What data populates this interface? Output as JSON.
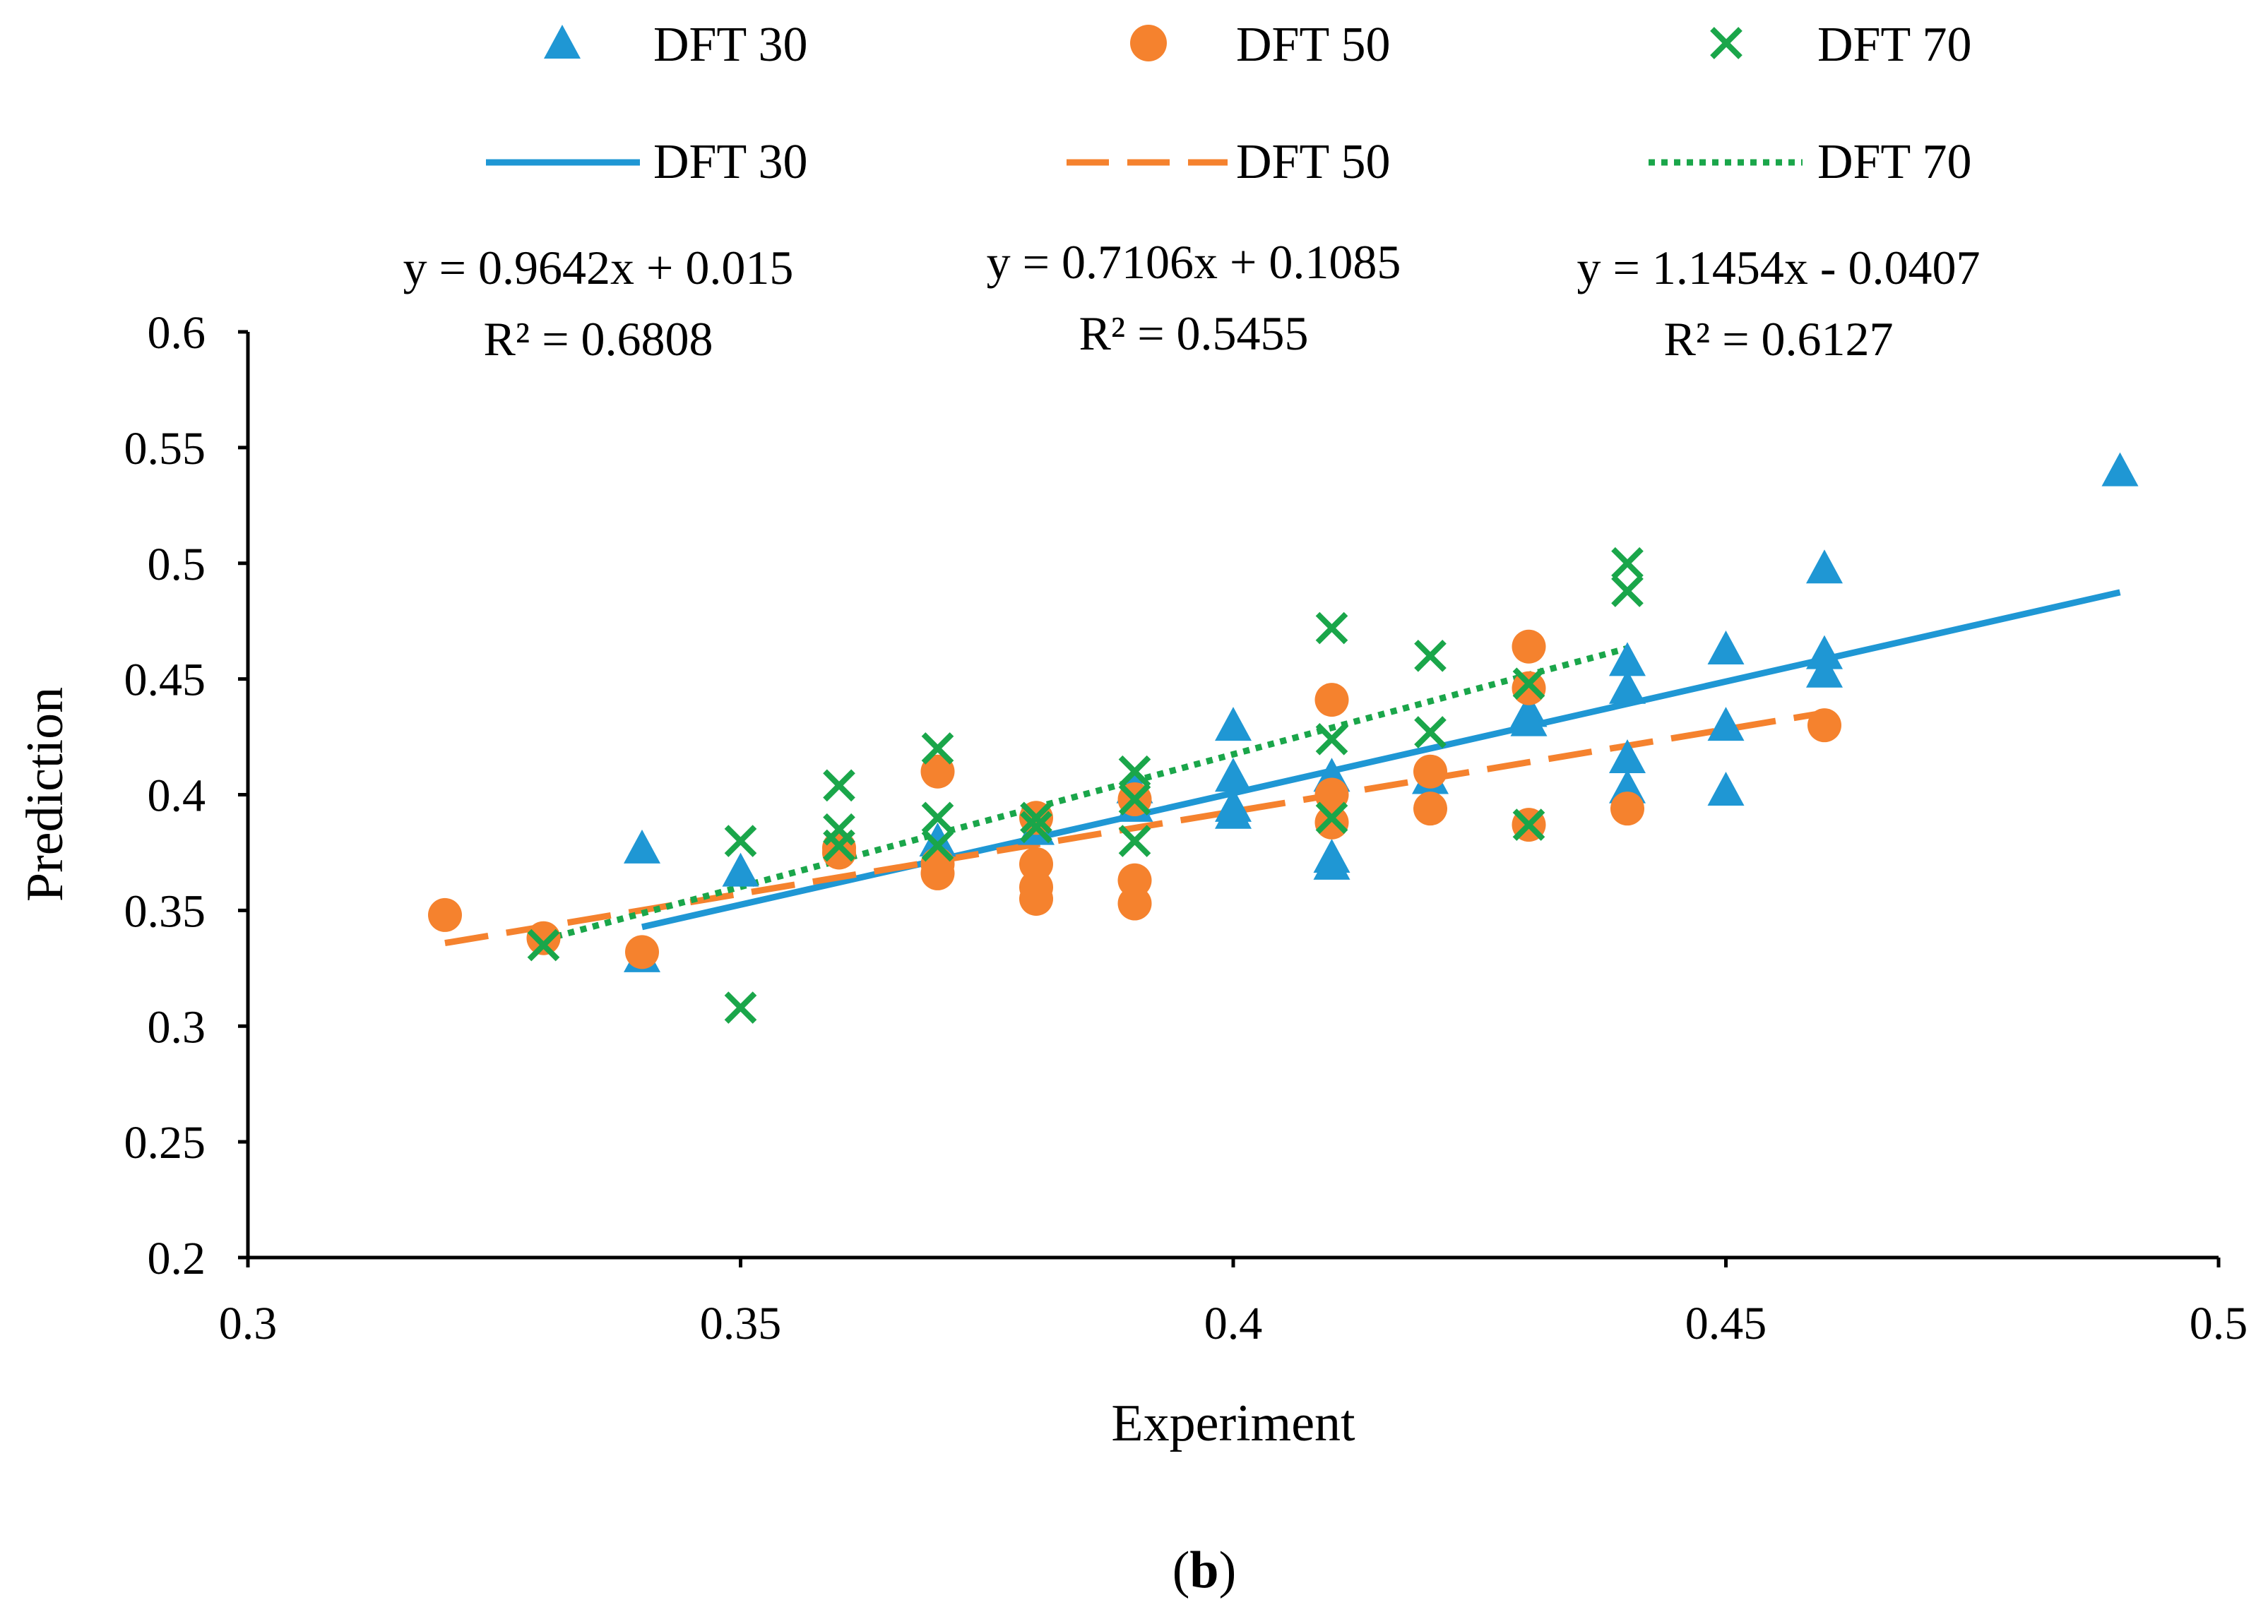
{
  "chart_data": {
    "type": "scatter",
    "caption": {
      "prefix": "(",
      "letter": "b",
      "suffix": ")"
    },
    "xlabel": "Experiment",
    "ylabel": "Prediction",
    "xlim": [
      0.3,
      0.5
    ],
    "ylim": [
      0.2,
      0.6
    ],
    "xticks": [
      {
        "value": 0.3,
        "label": "0.3"
      },
      {
        "value": 0.35,
        "label": "0.35"
      },
      {
        "value": 0.4,
        "label": "0.4"
      },
      {
        "value": 0.45,
        "label": "0.45"
      },
      {
        "value": 0.5,
        "label": "0.5"
      }
    ],
    "yticks": [
      {
        "value": 0.2,
        "label": "0.2"
      },
      {
        "value": 0.25,
        "label": "0.25"
      },
      {
        "value": 0.3,
        "label": "0.3"
      },
      {
        "value": 0.35,
        "label": "0.35"
      },
      {
        "value": 0.4,
        "label": "0.4"
      },
      {
        "value": 0.45,
        "label": "0.45"
      },
      {
        "value": 0.5,
        "label": "0.5"
      },
      {
        "value": 0.55,
        "label": "0.55"
      },
      {
        "value": 0.6,
        "label": "0.6"
      }
    ],
    "grid": false,
    "legend_position": "top",
    "series": [
      {
        "name": "DFT 30",
        "marker": "triangle",
        "color": "#1f97d4",
        "line_style": "solid",
        "trendline": {
          "slope": 0.9642,
          "intercept": 0.015,
          "x_range": [
            0.34,
            0.49
          ],
          "equation": "y = 0.9642x + 0.015",
          "r2": "R² = 0.6808"
        },
        "points": [
          [
            0.34,
            0.377
          ],
          [
            0.34,
            0.33
          ],
          [
            0.35,
            0.367
          ],
          [
            0.37,
            0.38
          ],
          [
            0.38,
            0.385
          ],
          [
            0.39,
            0.395
          ],
          [
            0.39,
            0.403
          ],
          [
            0.4,
            0.43
          ],
          [
            0.4,
            0.408
          ],
          [
            0.4,
            0.392
          ],
          [
            0.4,
            0.395
          ],
          [
            0.41,
            0.408
          ],
          [
            0.41,
            0.373
          ],
          [
            0.41,
            0.37
          ],
          [
            0.42,
            0.407
          ],
          [
            0.43,
            0.436
          ],
          [
            0.43,
            0.432
          ],
          [
            0.44,
            0.458
          ],
          [
            0.44,
            0.446
          ],
          [
            0.44,
            0.416
          ],
          [
            0.44,
            0.403
          ],
          [
            0.45,
            0.463
          ],
          [
            0.45,
            0.43
          ],
          [
            0.45,
            0.402
          ],
          [
            0.46,
            0.498
          ],
          [
            0.46,
            0.461
          ],
          [
            0.46,
            0.453
          ],
          [
            0.49,
            0.54
          ]
        ]
      },
      {
        "name": "DFT 50",
        "marker": "circle",
        "color": "#f5822e",
        "line_style": "dashed",
        "trendline": {
          "slope": 0.7106,
          "intercept": 0.1085,
          "x_range": [
            0.32,
            0.46
          ],
          "equation": "y = 0.7106x + 0.1085",
          "r2": "R² = 0.5455"
        },
        "points": [
          [
            0.32,
            0.348
          ],
          [
            0.33,
            0.338
          ],
          [
            0.34,
            0.332
          ],
          [
            0.36,
            0.377
          ],
          [
            0.36,
            0.375
          ],
          [
            0.37,
            0.41
          ],
          [
            0.37,
            0.37
          ],
          [
            0.37,
            0.366
          ],
          [
            0.38,
            0.39
          ],
          [
            0.38,
            0.37
          ],
          [
            0.38,
            0.36
          ],
          [
            0.38,
            0.355
          ],
          [
            0.39,
            0.398
          ],
          [
            0.39,
            0.363
          ],
          [
            0.39,
            0.353
          ],
          [
            0.41,
            0.441
          ],
          [
            0.41,
            0.4
          ],
          [
            0.41,
            0.388
          ],
          [
            0.42,
            0.41
          ],
          [
            0.42,
            0.394
          ],
          [
            0.43,
            0.464
          ],
          [
            0.43,
            0.446
          ],
          [
            0.43,
            0.387
          ],
          [
            0.44,
            0.394
          ],
          [
            0.46,
            0.43
          ]
        ]
      },
      {
        "name": "DFT 70",
        "marker": "x",
        "color": "#1aa64a",
        "line_style": "dotted",
        "trendline": {
          "slope": 1.1454,
          "intercept": -0.0407,
          "x_range": [
            0.33,
            0.44
          ],
          "equation": "y = 1.1454x - 0.0407",
          "r2": "R² = 0.6127"
        },
        "points": [
          [
            0.33,
            0.335
          ],
          [
            0.35,
            0.38
          ],
          [
            0.35,
            0.308
          ],
          [
            0.36,
            0.404
          ],
          [
            0.36,
            0.385
          ],
          [
            0.36,
            0.378
          ],
          [
            0.37,
            0.42
          ],
          [
            0.37,
            0.39
          ],
          [
            0.37,
            0.378
          ],
          [
            0.38,
            0.39
          ],
          [
            0.38,
            0.386
          ],
          [
            0.39,
            0.41
          ],
          [
            0.39,
            0.398
          ],
          [
            0.39,
            0.38
          ],
          [
            0.41,
            0.472
          ],
          [
            0.41,
            0.424
          ],
          [
            0.41,
            0.39
          ],
          [
            0.42,
            0.46
          ],
          [
            0.42,
            0.427
          ],
          [
            0.43,
            0.448
          ],
          [
            0.43,
            0.387
          ],
          [
            0.44,
            0.5
          ],
          [
            0.44,
            0.488
          ]
        ]
      }
    ]
  }
}
